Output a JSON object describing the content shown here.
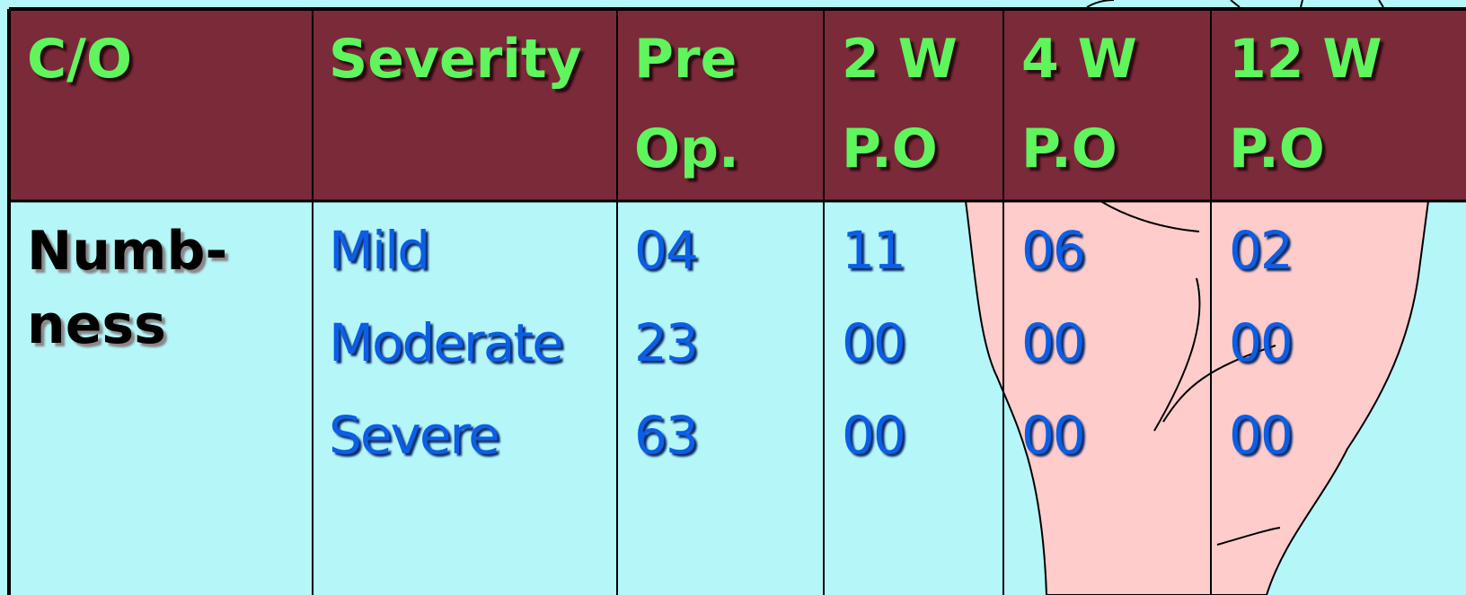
{
  "table": {
    "header": [
      [
        "C/O"
      ],
      [
        "Severity"
      ],
      [
        "Pre",
        "Op."
      ],
      [
        "2 W",
        "P.O"
      ],
      [
        "4 W",
        "P.O"
      ],
      [
        "12 W",
        "P.O"
      ]
    ],
    "rows": [
      {
        "complaint": [
          "Numb-",
          "ness"
        ],
        "severity": [
          "Mild",
          "Moderate",
          "Severe"
        ],
        "columns": [
          [
            "04",
            "23",
            "63"
          ],
          [
            "11",
            "00",
            "00"
          ],
          [
            "06",
            "00",
            "00"
          ],
          [
            "02",
            "00",
            "00"
          ]
        ]
      }
    ]
  }
}
